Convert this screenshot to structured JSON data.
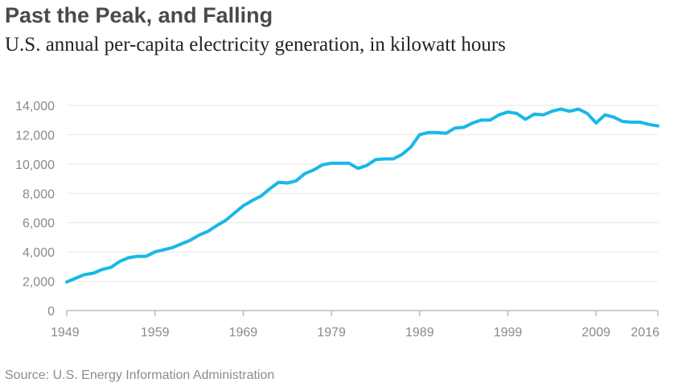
{
  "header": {
    "title": "Past the Peak, and Falling",
    "subtitle": "U.S. annual per-capita electricity generation, in kilowatt hours"
  },
  "footer": {
    "source": "Source: U.S. Energy Information Administration"
  },
  "colors": {
    "line": "#19b8e6",
    "grid": "#e6e6e6",
    "axis": "#bbbbbb",
    "tick_text": "#8a8a8a"
  },
  "chart_data": {
    "type": "line",
    "title": "Past the Peak, and Falling",
    "subtitle": "U.S. annual per-capita electricity generation, in kilowatt hours",
    "xlabel": "",
    "ylabel": "",
    "xlim": [
      1949,
      2016
    ],
    "ylim": [
      0,
      14000
    ],
    "x_ticks": [
      "1949",
      "1959",
      "1969",
      "1979",
      "1989",
      "1999",
      "2009",
      "2016"
    ],
    "y_ticks": [
      "0",
      "2,000",
      "4,000",
      "6,000",
      "8,000",
      "10,000",
      "12,000",
      "14,000"
    ],
    "grid": "horizontal",
    "series": [
      {
        "x": [
          1949,
          1950,
          1951,
          1952,
          1953,
          1954,
          1955,
          1956,
          1957,
          1958,
          1959,
          1960,
          1961,
          1962,
          1963,
          1964,
          1965,
          1966,
          1967,
          1968,
          1969,
          1970,
          1971,
          1972,
          1973,
          1974,
          1975,
          1976,
          1977,
          1978,
          1979,
          1980,
          1981,
          1982,
          1983,
          1984,
          1985,
          1986,
          1987,
          1988,
          1989,
          1990,
          1991,
          1992,
          1993,
          1994,
          1995,
          1996,
          1997,
          1998,
          1999,
          2000,
          2001,
          2002,
          2003,
          2004,
          2005,
          2006,
          2007,
          2008,
          2009,
          2010,
          2011,
          2012,
          2013,
          2014,
          2015,
          2016
        ],
        "values": [
          1950,
          2200,
          2450,
          2550,
          2800,
          2950,
          3350,
          3600,
          3700,
          3700,
          4000,
          4150,
          4300,
          4550,
          4800,
          5150,
          5400,
          5800,
          6150,
          6650,
          7150,
          7500,
          7800,
          8300,
          8750,
          8700,
          8850,
          9350,
          9600,
          9950,
          10050,
          10050,
          10050,
          9700,
          9900,
          10300,
          10350,
          10350,
          10650,
          11150,
          12000,
          12150,
          12150,
          12100,
          12450,
          12500,
          12800,
          13000,
          13000,
          13350,
          13550,
          13450,
          13050,
          13400,
          13350,
          13600,
          13750,
          13600,
          13750,
          13450,
          12800,
          13350,
          13200,
          12900,
          12850,
          12850,
          12700,
          12600
        ]
      }
    ]
  }
}
